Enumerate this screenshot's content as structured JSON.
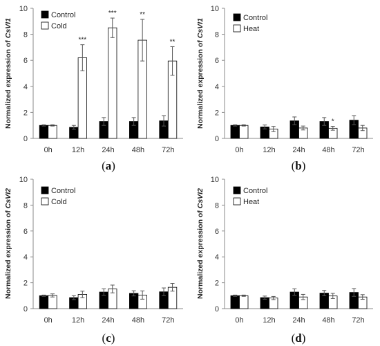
{
  "chart_data": [
    {
      "id": "a",
      "type": "bar",
      "panel_label": "a",
      "ylabel_prefix": "Normalized expression of ",
      "ylabel_gene": "CsVI1",
      "categories": [
        "0h",
        "12h",
        "24h",
        "48h",
        "72h"
      ],
      "ylim": [
        0,
        10
      ],
      "yticks": [
        0,
        2,
        4,
        6,
        8,
        10
      ],
      "series": [
        {
          "name": "Control",
          "fill": "#000000",
          "values": [
            1.0,
            0.85,
            1.3,
            1.3,
            1.35
          ],
          "errors": [
            0.05,
            0.15,
            0.3,
            0.3,
            0.4
          ]
        },
        {
          "name": "Cold",
          "fill": "#ffffff",
          "values": [
            1.0,
            6.2,
            8.5,
            7.55,
            5.95
          ],
          "errors": [
            0.05,
            1.0,
            0.75,
            1.6,
            1.1
          ]
        }
      ],
      "annotations": [
        {
          "category": "12h",
          "text": "***"
        },
        {
          "category": "24h",
          "text": "***"
        },
        {
          "category": "48h",
          "text": "**"
        },
        {
          "category": "72h",
          "text": "**"
        }
      ]
    },
    {
      "id": "b",
      "type": "bar",
      "panel_label": "b",
      "ylabel_prefix": "Normalized expression of ",
      "ylabel_gene": "CsVI1",
      "categories": [
        "0h",
        "12h",
        "24h",
        "48h",
        "72h"
      ],
      "ylim": [
        0,
        10
      ],
      "yticks": [
        0,
        2,
        4,
        6,
        8,
        10
      ],
      "series": [
        {
          "name": "Control",
          "fill": "#000000",
          "values": [
            1.0,
            0.88,
            1.35,
            1.3,
            1.4
          ],
          "errors": [
            0.05,
            0.15,
            0.3,
            0.3,
            0.35
          ]
        },
        {
          "name": "Heat",
          "fill": "#ffffff",
          "values": [
            1.0,
            0.72,
            0.8,
            0.78,
            0.8
          ],
          "errors": [
            0.05,
            0.2,
            0.15,
            0.15,
            0.2
          ]
        }
      ],
      "annotations": [
        {
          "category": "48h",
          "text": "*"
        }
      ]
    },
    {
      "id": "c",
      "type": "bar",
      "panel_label": "c",
      "ylabel_prefix": "Normalized expression of ",
      "ylabel_gene": "CsVI2",
      "categories": [
        "0h",
        "12h",
        "24h",
        "48h",
        "72h"
      ],
      "ylim": [
        0,
        10
      ],
      "yticks": [
        0,
        2,
        4,
        6,
        8,
        10
      ],
      "series": [
        {
          "name": "Control",
          "fill": "#000000",
          "values": [
            1.0,
            0.85,
            1.28,
            1.18,
            1.3
          ],
          "errors": [
            0.05,
            0.15,
            0.25,
            0.2,
            0.3
          ]
        },
        {
          "name": "Cold",
          "fill": "#ffffff",
          "values": [
            1.02,
            1.1,
            1.52,
            1.05,
            1.65
          ],
          "errors": [
            0.12,
            0.25,
            0.3,
            0.32,
            0.3
          ]
        }
      ],
      "annotations": []
    },
    {
      "id": "d",
      "type": "bar",
      "panel_label": "d",
      "ylabel_prefix": "Normalized expression of ",
      "ylabel_gene": "CsVI2",
      "categories": [
        "0h",
        "12h",
        "24h",
        "48h",
        "72h"
      ],
      "ylim": [
        0,
        10
      ],
      "yticks": [
        0,
        2,
        4,
        6,
        8,
        10
      ],
      "series": [
        {
          "name": "Control",
          "fill": "#000000",
          "values": [
            1.0,
            0.85,
            1.28,
            1.2,
            1.25
          ],
          "errors": [
            0.05,
            0.12,
            0.25,
            0.2,
            0.3
          ]
        },
        {
          "name": "Heat",
          "fill": "#ffffff",
          "values": [
            1.0,
            0.82,
            0.9,
            0.98,
            0.9
          ],
          "errors": [
            0.05,
            0.12,
            0.2,
            0.2,
            0.18
          ]
        }
      ],
      "annotations": []
    }
  ]
}
